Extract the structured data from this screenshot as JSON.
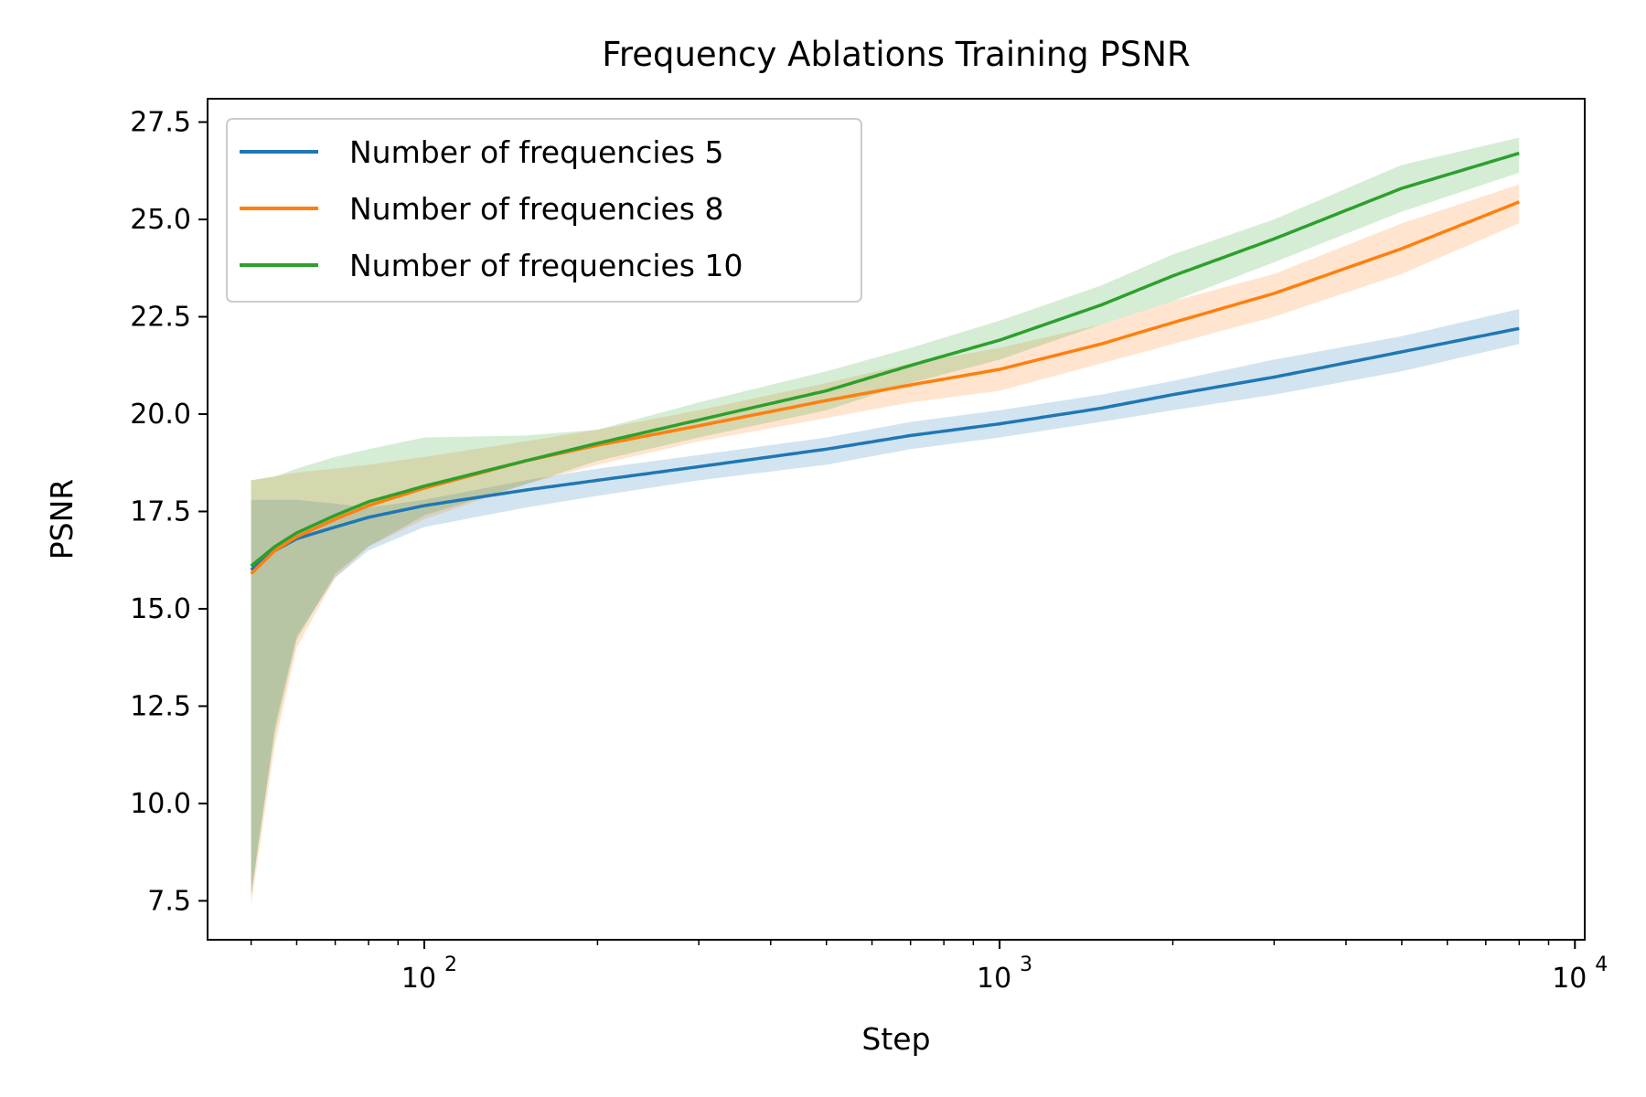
{
  "chart_data": {
    "type": "line",
    "title": "Frequency Ablations Training PSNR",
    "xlabel": "Step",
    "ylabel": "PSNR",
    "x_scale": "log",
    "xlim": [
      42,
      10400
    ],
    "ylim": [
      6.5,
      28.1
    ],
    "x_ticks": [
      {
        "value": 100,
        "base": "10",
        "exp": "2"
      },
      {
        "value": 1000,
        "base": "10",
        "exp": "3"
      },
      {
        "value": 10000,
        "base": "10",
        "exp": "4"
      }
    ],
    "y_ticks": [
      {
        "value": 7.5,
        "label": "7.5"
      },
      {
        "value": 10,
        "label": "10.0"
      },
      {
        "value": 12.5,
        "label": "12.5"
      },
      {
        "value": 15,
        "label": "15.0"
      },
      {
        "value": 17.5,
        "label": "17.5"
      },
      {
        "value": 20,
        "label": "20.0"
      },
      {
        "value": 22.5,
        "label": "22.5"
      },
      {
        "value": 25,
        "label": "25.0"
      },
      {
        "value": 27.5,
        "label": "27.5"
      }
    ],
    "grid": false,
    "legend_position": "upper-left",
    "series": [
      {
        "name": "Number of frequencies 5",
        "color": "#1f77b4",
        "x": [
          50,
          55,
          60,
          70,
          80,
          100,
          150,
          200,
          300,
          500,
          700,
          1000,
          1500,
          2000,
          3000,
          5000,
          8000
        ],
        "y": [
          16.0,
          16.5,
          16.8,
          17.1,
          17.35,
          17.65,
          18.05,
          18.3,
          18.65,
          19.1,
          19.45,
          19.75,
          20.15,
          20.5,
          20.95,
          21.6,
          22.2
        ],
        "lower": [
          7.6,
          12.0,
          14.3,
          15.8,
          16.5,
          17.1,
          17.6,
          17.9,
          18.3,
          18.7,
          19.1,
          19.4,
          19.8,
          20.1,
          20.5,
          21.1,
          21.8
        ],
        "upper": [
          17.8,
          17.8,
          17.8,
          17.7,
          17.6,
          17.8,
          18.3,
          18.6,
          18.95,
          19.4,
          19.8,
          20.1,
          20.5,
          20.85,
          21.4,
          22.0,
          22.7
        ]
      },
      {
        "name": "Number of frequencies 8",
        "color": "#ff7f0e",
        "x": [
          50,
          55,
          60,
          70,
          80,
          100,
          150,
          200,
          300,
          500,
          700,
          1000,
          1500,
          2000,
          3000,
          5000,
          8000
        ],
        "y": [
          15.9,
          16.5,
          16.85,
          17.3,
          17.65,
          18.1,
          18.8,
          19.2,
          19.7,
          20.35,
          20.75,
          21.15,
          21.8,
          22.35,
          23.1,
          24.25,
          25.45
        ],
        "lower": [
          7.4,
          11.5,
          14.0,
          15.8,
          16.6,
          17.3,
          18.2,
          18.7,
          19.3,
          19.9,
          20.3,
          20.6,
          21.3,
          21.8,
          22.5,
          23.6,
          24.9
        ],
        "upper": [
          18.3,
          18.4,
          18.5,
          18.6,
          18.7,
          18.9,
          19.3,
          19.6,
          20.1,
          20.8,
          21.3,
          21.7,
          22.3,
          22.9,
          23.6,
          24.9,
          25.9
        ]
      },
      {
        "name": "Number of frequencies 10",
        "color": "#2ca02c",
        "x": [
          50,
          55,
          60,
          70,
          80,
          100,
          150,
          200,
          300,
          500,
          700,
          1000,
          1500,
          2000,
          3000,
          5000,
          8000
        ],
        "y": [
          16.1,
          16.6,
          16.95,
          17.4,
          17.75,
          18.15,
          18.8,
          19.25,
          19.85,
          20.6,
          21.25,
          21.9,
          22.8,
          23.55,
          24.5,
          25.8,
          26.7
        ],
        "lower": [
          7.7,
          11.8,
          14.2,
          15.9,
          16.6,
          17.4,
          18.2,
          18.8,
          19.4,
          20.1,
          20.8,
          21.4,
          22.3,
          22.9,
          23.9,
          25.2,
          26.2
        ],
        "upper": [
          18.3,
          18.4,
          18.6,
          18.9,
          19.1,
          19.4,
          19.45,
          19.6,
          20.3,
          21.1,
          21.7,
          22.4,
          23.3,
          24.1,
          25.0,
          26.4,
          27.1
        ]
      }
    ]
  }
}
